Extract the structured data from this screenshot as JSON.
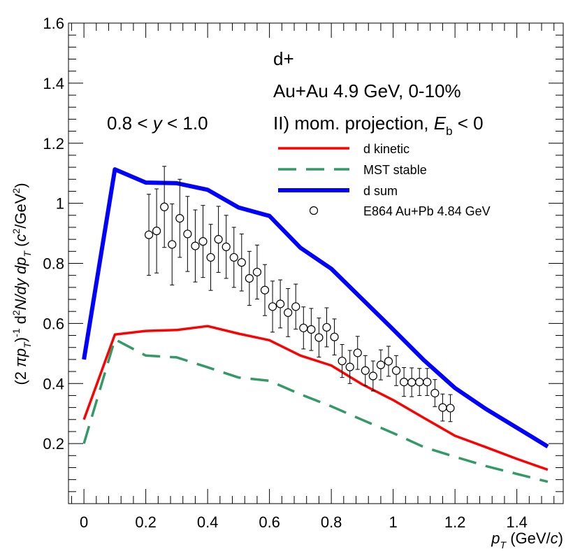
{
  "chart_data": {
    "type": "line",
    "title": "",
    "xlabel": {
      "main": "p",
      "sub": "T",
      "units": " (GeV/",
      "c": "c",
      "close": ")"
    },
    "ylabel": {
      "p1": "(2 ",
      "pi": "π",
      "p2": "p",
      "sub1": "T",
      "p3": ")",
      "sup1": "-1",
      "p4": " d",
      "sup2": "2",
      "p5": "N/dy dp",
      "sub2": "T",
      "p6": " (",
      "c": "c",
      "sup3": "2",
      "p7": "/GeV",
      "sup4": "2",
      "p8": ")"
    },
    "xlim": [
      -0.05,
      1.55
    ],
    "ylim": [
      0.0,
      1.6
    ],
    "x_ticks": [
      0,
      0.2,
      0.4,
      0.6,
      0.8,
      1,
      1.2,
      1.4
    ],
    "x_tick_labels": [
      "0",
      "0.2",
      "0.4",
      "0.6",
      "0.8",
      "1",
      "1.2",
      "1.4"
    ],
    "y_ticks": [
      0.2,
      0.4,
      0.6,
      0.8,
      1,
      1.2,
      1.4,
      1.6
    ],
    "y_tick_labels": [
      "0.2",
      "0.4",
      "0.6",
      "0.8",
      "1",
      "1.2",
      "1.4",
      "1.6"
    ],
    "annotations": {
      "rapidity": {
        "a": "0.8 < ",
        "y": "y",
        "b": " < 1.0"
      },
      "line1": "d+",
      "line2": "Au+Au 4.9 GeV, 0-10%",
      "line3": {
        "a": "II) mom. projection, ",
        "E": "E",
        "sub": "b",
        "b": " < 0"
      }
    },
    "series": [
      {
        "name": "d kinetic",
        "color": "#ff0000",
        "style": "solid",
        "x": [
          0,
          0.1,
          0.2,
          0.3,
          0.4,
          0.5,
          0.6,
          0.7,
          0.8,
          0.9,
          1.0,
          1.1,
          1.2,
          1.3,
          1.4,
          1.5
        ],
        "values": [
          0.28,
          0.563,
          0.575,
          0.578,
          0.591,
          0.566,
          0.544,
          0.493,
          0.46,
          0.397,
          0.345,
          0.285,
          0.226,
          0.188,
          0.149,
          0.113
        ]
      },
      {
        "name": "MST stable",
        "color": "#339966",
        "style": "dashed",
        "x": [
          0,
          0.1,
          0.2,
          0.3,
          0.4,
          0.5,
          0.6,
          0.7,
          0.8,
          0.9,
          1.0,
          1.1,
          1.2,
          1.3,
          1.4,
          1.5
        ],
        "values": [
          0.2,
          0.547,
          0.493,
          0.487,
          0.454,
          0.42,
          0.409,
          0.364,
          0.324,
          0.279,
          0.235,
          0.188,
          0.156,
          0.125,
          0.099,
          0.073
        ]
      },
      {
        "name": "d sum",
        "color": "#0000ff",
        "style": "solid",
        "x": [
          0,
          0.1,
          0.2,
          0.3,
          0.4,
          0.5,
          0.6,
          0.7,
          0.8,
          0.9,
          1.0,
          1.1,
          1.2,
          1.3,
          1.4,
          1.5
        ],
        "values": [
          0.48,
          1.113,
          1.069,
          1.067,
          1.045,
          0.986,
          0.958,
          0.852,
          0.782,
          0.681,
          0.58,
          0.477,
          0.385,
          0.315,
          0.253,
          0.19
        ]
      }
    ],
    "points": {
      "name": "E864 Au+Pb 4.84 GeV",
      "x": [
        0.21,
        0.235,
        0.26,
        0.285,
        0.31,
        0.335,
        0.36,
        0.385,
        0.41,
        0.435,
        0.46,
        0.485,
        0.51,
        0.535,
        0.56,
        0.585,
        0.61,
        0.635,
        0.66,
        0.685,
        0.71,
        0.735,
        0.76,
        0.785,
        0.81,
        0.835,
        0.86,
        0.885,
        0.91,
        0.935,
        0.96,
        0.985,
        1.01,
        1.035,
        1.06,
        1.085,
        1.11,
        1.135,
        1.16,
        1.185
      ],
      "values": [
        0.895,
        0.908,
        0.988,
        0.863,
        0.95,
        0.898,
        0.858,
        0.873,
        0.82,
        0.88,
        0.855,
        0.82,
        0.803,
        0.75,
        0.771,
        0.711,
        0.656,
        0.665,
        0.636,
        0.656,
        0.585,
        0.58,
        0.553,
        0.587,
        0.555,
        0.475,
        0.455,
        0.502,
        0.443,
        0.425,
        0.462,
        0.474,
        0.443,
        0.405,
        0.404,
        0.405,
        0.405,
        0.368,
        0.32,
        0.318
      ],
      "errors": [
        0.135,
        0.14,
        0.135,
        0.135,
        0.13,
        0.125,
        0.12,
        0.12,
        0.11,
        0.11,
        0.105,
        0.1,
        0.095,
        0.09,
        0.09,
        0.085,
        0.085,
        0.08,
        0.08,
        0.075,
        0.07,
        0.07,
        0.065,
        0.065,
        0.06,
        0.055,
        0.055,
        0.055,
        0.05,
        0.05,
        0.05,
        0.05,
        0.05,
        0.048,
        0.048,
        0.045,
        0.045,
        0.045,
        0.045,
        0.045
      ]
    },
    "legend": {
      "position": "top-right",
      "entries": [
        "d kinetic",
        "MST stable",
        "d sum",
        "E864 Au+Pb 4.84 GeV"
      ]
    }
  }
}
